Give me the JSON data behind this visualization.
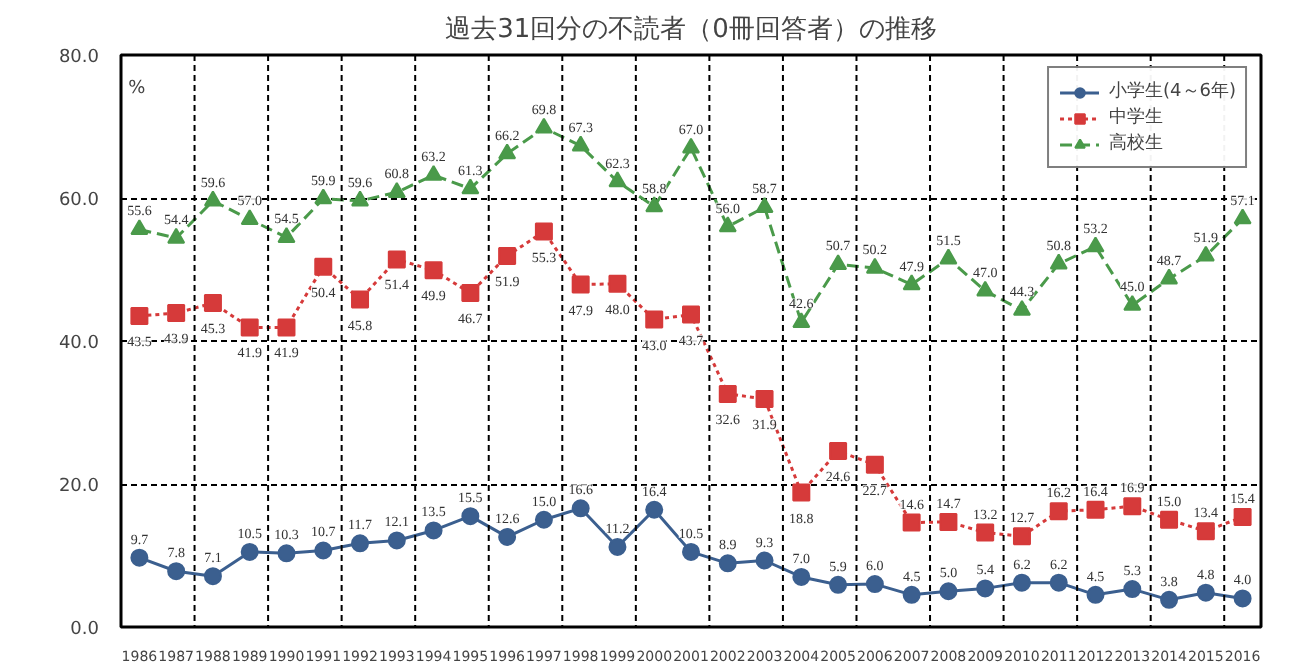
{
  "chart_data": {
    "type": "line",
    "title": "過去31回分の不読者（0冊回答者）の推移",
    "ylabel": "%",
    "categories": [
      "1986",
      "1987",
      "1988",
      "1989",
      "1990",
      "1991",
      "1992",
      "1993",
      "1994",
      "1995",
      "1996",
      "1997",
      "1998",
      "1999",
      "2000",
      "2001",
      "2002",
      "2003",
      "2004",
      "2005",
      "2006",
      "2007",
      "2008",
      "2009",
      "2010",
      "2011",
      "2012",
      "2013",
      "2014",
      "2015",
      "2016"
    ],
    "ylim": [
      0,
      80
    ],
    "yticks": [
      {
        "value": 0,
        "label": "0.0"
      },
      {
        "value": 20,
        "label": "20.0"
      },
      {
        "value": 40,
        "label": "40.0"
      },
      {
        "value": 60,
        "label": "60.0"
      },
      {
        "value": 80,
        "label": "80.0"
      }
    ],
    "grid": true,
    "legend": "top right",
    "series": [
      {
        "name": "小学生(4～6年)",
        "color": "#3b5f8f",
        "marker": "circle",
        "line_style": "solid",
        "values": [
          9.7,
          7.8,
          7.1,
          10.5,
          10.3,
          10.7,
          11.7,
          12.1,
          13.5,
          15.5,
          12.6,
          15.0,
          16.6,
          11.2,
          16.4,
          10.5,
          8.9,
          9.3,
          7.0,
          5.9,
          6.0,
          4.5,
          5.0,
          5.4,
          6.2,
          6.2,
          4.5,
          5.3,
          3.8,
          4.8,
          4.0
        ],
        "value_labels": [
          "9.7",
          "7.8",
          "7.1",
          "10.5",
          "10.3",
          "10.7",
          "11.7",
          "12.1",
          "13.5",
          "15.5",
          "12.6",
          "15.0",
          "16.6",
          "11.2",
          "16.4",
          "10.5",
          "8.9",
          "9.3",
          "7.0",
          "5.9",
          "6.0",
          "4.5",
          "5.0",
          "5.4",
          "6.2",
          "6.2",
          "4.5",
          "5.3",
          "3.8",
          "4.8",
          "4.0"
        ]
      },
      {
        "name": "中学生",
        "color": "#d63a3a",
        "marker": "square",
        "line_style": "dotted",
        "values": [
          43.5,
          43.9,
          45.3,
          41.9,
          41.9,
          50.4,
          45.8,
          51.4,
          49.9,
          46.7,
          51.9,
          55.3,
          47.9,
          48.0,
          43.0,
          43.7,
          32.6,
          31.9,
          18.8,
          24.6,
          22.7,
          14.6,
          14.7,
          13.2,
          12.7,
          16.2,
          16.4,
          16.9,
          15.0,
          13.4,
          15.4
        ],
        "value_labels": [
          "43.5",
          "43.9",
          "45.3",
          "41.9",
          "41.9",
          "50.4",
          "45.8",
          "51.4",
          "49.9",
          "46.7",
          "51.9",
          "55.3",
          "47.9",
          "48.0",
          "43.0",
          "43.7",
          "32.6",
          "31.9",
          "18.8",
          "24.6",
          "22.7",
          "14.6",
          "14.7",
          "13.2",
          "12.7",
          "16.2",
          "16.4",
          "16.9",
          "15.0",
          "13.4",
          "15.4"
        ]
      },
      {
        "name": "高校生",
        "color": "#4a9a4a",
        "marker": "triangle",
        "line_style": "dashed",
        "values": [
          55.6,
          54.4,
          59.6,
          57.0,
          54.5,
          59.9,
          59.6,
          60.8,
          63.2,
          61.3,
          66.2,
          69.8,
          67.3,
          62.3,
          58.8,
          67.0,
          56.0,
          58.7,
          42.6,
          50.7,
          50.2,
          47.9,
          51.5,
          47.0,
          44.3,
          50.8,
          53.2,
          45.0,
          48.7,
          51.9,
          57.1
        ],
        "value_labels": [
          "55.6",
          "54.4",
          "59.6",
          "57.0",
          "54.5",
          "59.9",
          "59.6",
          "60.8",
          "63.2",
          "61.3",
          "66.2",
          "69.8",
          "67.3",
          "62.3",
          "58.8",
          "67.0",
          "56.0",
          "58.7",
          "42.6",
          "50.7",
          "50.2",
          "47.9",
          "51.5",
          "47.0",
          "44.3",
          "50.8",
          "53.2",
          "45.0",
          "48.7",
          "51.9",
          "57.1"
        ]
      }
    ]
  }
}
